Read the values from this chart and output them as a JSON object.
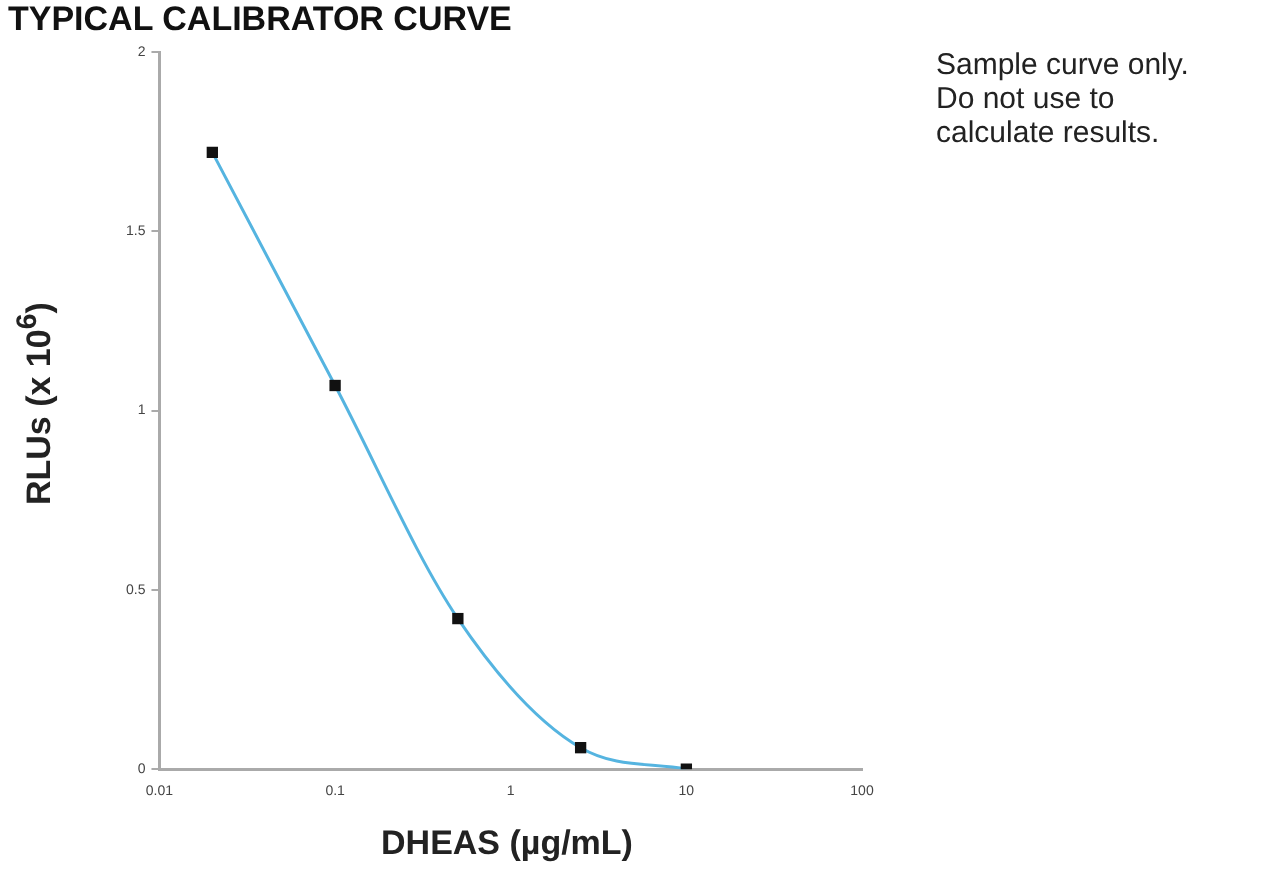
{
  "chart_data": {
    "type": "line",
    "title": "TYPICAL CALIBRATOR CURVE",
    "xlabel": "DHEAS (µg/mL)",
    "ylabel": "RLUs (x 10$^{6}$)",
    "annotations": [
      "Sample curve only. Do not use to calculate results."
    ],
    "x": [
      0.02,
      0.1,
      0.5,
      2.5,
      10
    ],
    "series": [
      {
        "color": "#55b4e0",
        "values": [
          1.72,
          1.07,
          0.42,
          0.06,
          0
        ]
      }
    ],
    "log": "x",
    "xlim": [
      0.01,
      100
    ],
    "xticks": [
      0.01,
      0.1,
      1,
      10,
      100
    ],
    "ylim": [
      0,
      2
    ],
    "yticks": [
      0,
      0.5,
      1,
      1.5,
      2
    ],
    "grid": false,
    "legend": false,
    "marker": "square",
    "line_style": "solid"
  }
}
